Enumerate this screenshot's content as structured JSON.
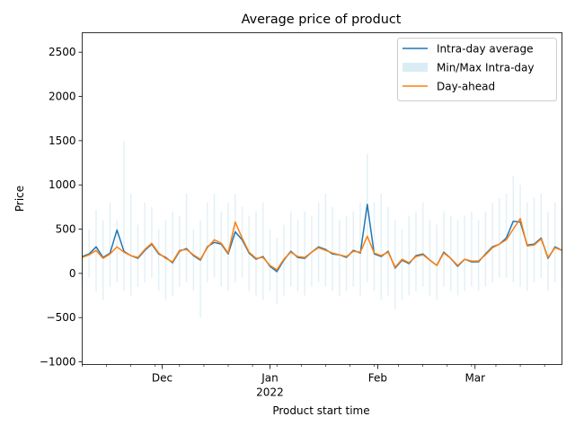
{
  "chart_data": {
    "type": "line",
    "title": "Average price of product",
    "xlabel": "Product start time",
    "ylabel": "Price",
    "x_axis": {
      "type": "date",
      "range": [
        "2021-11-08",
        "2022-03-26"
      ],
      "ticks": [
        {
          "date": "2021-12-01",
          "label": "Dec",
          "sublabel": ""
        },
        {
          "date": "2022-01-01",
          "label": "Jan",
          "sublabel": "2022"
        },
        {
          "date": "2022-02-01",
          "label": "Feb",
          "sublabel": ""
        },
        {
          "date": "2022-03-01",
          "label": "Mar",
          "sublabel": ""
        }
      ]
    },
    "ylim": [
      -1030,
      2720
    ],
    "yticks": [
      -1000,
      -500,
      0,
      500,
      1000,
      1500,
      2000,
      2500
    ],
    "legend": {
      "placement": "top-right",
      "entries": [
        "Intra-day average",
        "Min/Max Intra-day",
        "Day-ahead"
      ]
    },
    "colors": {
      "intraday": "#1f77b4",
      "minmax": "#add8e6",
      "dayahead": "#ff7f0e"
    },
    "series": [
      {
        "name": "Intra-day average",
        "x": [
          "2021-11-08",
          "2021-11-10",
          "2021-11-12",
          "2021-11-14",
          "2021-11-16",
          "2021-11-18",
          "2021-11-20",
          "2021-11-22",
          "2021-11-24",
          "2021-11-26",
          "2021-11-28",
          "2021-11-30",
          "2021-12-02",
          "2021-12-04",
          "2021-12-06",
          "2021-12-08",
          "2021-12-10",
          "2021-12-12",
          "2021-12-14",
          "2021-12-16",
          "2021-12-18",
          "2021-12-20",
          "2021-12-22",
          "2021-12-24",
          "2021-12-26",
          "2021-12-28",
          "2021-12-30",
          "2022-01-01",
          "2022-01-03",
          "2022-01-05",
          "2022-01-07",
          "2022-01-09",
          "2022-01-11",
          "2022-01-13",
          "2022-01-15",
          "2022-01-17",
          "2022-01-19",
          "2022-01-21",
          "2022-01-23",
          "2022-01-25",
          "2022-01-27",
          "2022-01-29",
          "2022-01-31",
          "2022-02-02",
          "2022-02-04",
          "2022-02-06",
          "2022-02-08",
          "2022-02-10",
          "2022-02-12",
          "2022-02-14",
          "2022-02-16",
          "2022-02-18",
          "2022-02-20",
          "2022-02-22",
          "2022-02-24",
          "2022-02-26",
          "2022-02-28",
          "2022-03-02",
          "2022-03-04",
          "2022-03-06",
          "2022-03-08",
          "2022-03-10",
          "2022-03-12",
          "2022-03-14",
          "2022-03-16",
          "2022-03-18",
          "2022-03-20",
          "2022-03-22",
          "2022-03-24",
          "2022-03-26"
        ],
        "values": [
          190,
          220,
          300,
          180,
          230,
          490,
          250,
          200,
          170,
          260,
          330,
          220,
          180,
          120,
          250,
          280,
          200,
          150,
          300,
          350,
          330,
          220,
          470,
          380,
          230,
          160,
          190,
          80,
          20,
          150,
          250,
          180,
          170,
          240,
          300,
          270,
          220,
          210,
          180,
          260,
          230,
          780,
          220,
          190,
          250,
          60,
          150,
          110,
          200,
          220,
          150,
          90,
          240,
          170,
          80,
          160,
          130,
          130,
          220,
          300,
          330,
          400,
          590,
          580,
          320,
          330,
          400,
          170,
          300,
          260
        ]
      },
      {
        "name": "Day-ahead",
        "x": [
          "2021-11-08",
          "2021-11-10",
          "2021-11-12",
          "2021-11-14",
          "2021-11-16",
          "2021-11-18",
          "2021-11-20",
          "2021-11-22",
          "2021-11-24",
          "2021-11-26",
          "2021-11-28",
          "2021-11-30",
          "2021-12-02",
          "2021-12-04",
          "2021-12-06",
          "2021-12-08",
          "2021-12-10",
          "2021-12-12",
          "2021-12-14",
          "2021-12-16",
          "2021-12-18",
          "2021-12-20",
          "2021-12-22",
          "2021-12-24",
          "2021-12-26",
          "2021-12-28",
          "2021-12-30",
          "2022-01-01",
          "2022-01-03",
          "2022-01-05",
          "2022-01-07",
          "2022-01-09",
          "2022-01-11",
          "2022-01-13",
          "2022-01-15",
          "2022-01-17",
          "2022-01-19",
          "2022-01-21",
          "2022-01-23",
          "2022-01-25",
          "2022-01-27",
          "2022-01-29",
          "2022-01-31",
          "2022-02-02",
          "2022-02-04",
          "2022-02-06",
          "2022-02-08",
          "2022-02-10",
          "2022-02-12",
          "2022-02-14",
          "2022-02-16",
          "2022-02-18",
          "2022-02-20",
          "2022-02-22",
          "2022-02-24",
          "2022-02-26",
          "2022-02-28",
          "2022-03-02",
          "2022-03-04",
          "2022-03-06",
          "2022-03-08",
          "2022-03-10",
          "2022-03-12",
          "2022-03-14",
          "2022-03-16",
          "2022-03-18",
          "2022-03-20",
          "2022-03-22",
          "2022-03-24",
          "2022-03-26"
        ],
        "values": [
          180,
          210,
          260,
          170,
          220,
          300,
          240,
          200,
          180,
          270,
          340,
          230,
          170,
          130,
          260,
          270,
          210,
          160,
          290,
          380,
          340,
          230,
          580,
          400,
          240,
          170,
          180,
          90,
          40,
          160,
          240,
          190,
          180,
          240,
          290,
          260,
          230,
          210,
          190,
          250,
          240,
          420,
          230,
          200,
          240,
          70,
          160,
          120,
          190,
          210,
          150,
          90,
          230,
          170,
          90,
          160,
          140,
          140,
          210,
          290,
          330,
          380,
          500,
          620,
          310,
          320,
          390,
          180,
          290,
          260
        ]
      }
    ],
    "band": {
      "name": "Min/Max Intra-day",
      "note": "spiky envelope around intra-day average",
      "min_values": [
        -100,
        -50,
        -200,
        -300,
        -150,
        -100,
        -200,
        -250,
        -150,
        -100,
        -50,
        -200,
        -300,
        -250,
        -150,
        -100,
        -200,
        -500,
        -100,
        -50,
        -150,
        -200,
        -100,
        -50,
        -200,
        -250,
        -300,
        -200,
        -350,
        -250,
        -150,
        -200,
        -250,
        -150,
        -100,
        -150,
        -200,
        -250,
        -200,
        -150,
        -250,
        -100,
        -200,
        -300,
        -250,
        -400,
        -300,
        -250,
        -200,
        -150,
        -250,
        -300,
        -150,
        -200,
        -250,
        -200,
        -150,
        -200,
        -150,
        -100,
        -50,
        -50,
        -100,
        -150,
        -200,
        -100,
        -50,
        -200,
        -100,
        -150
      ],
      "max_values": [
        450,
        500,
        720,
        600,
        800,
        600,
        1500,
        900,
        550,
        800,
        750,
        500,
        600,
        700,
        650,
        900,
        500,
        600,
        800,
        900,
        700,
        800,
        900,
        750,
        650,
        700,
        800,
        500,
        400,
        550,
        700,
        600,
        700,
        650,
        800,
        900,
        750,
        600,
        650,
        700,
        800,
        1350,
        800,
        900,
        750,
        600,
        500,
        650,
        700,
        800,
        600,
        550,
        700,
        650,
        600,
        650,
        700,
        600,
        700,
        800,
        850,
        900,
        1100,
        1000,
        800,
        850,
        900,
        700,
        800,
        750
      ]
    }
  }
}
